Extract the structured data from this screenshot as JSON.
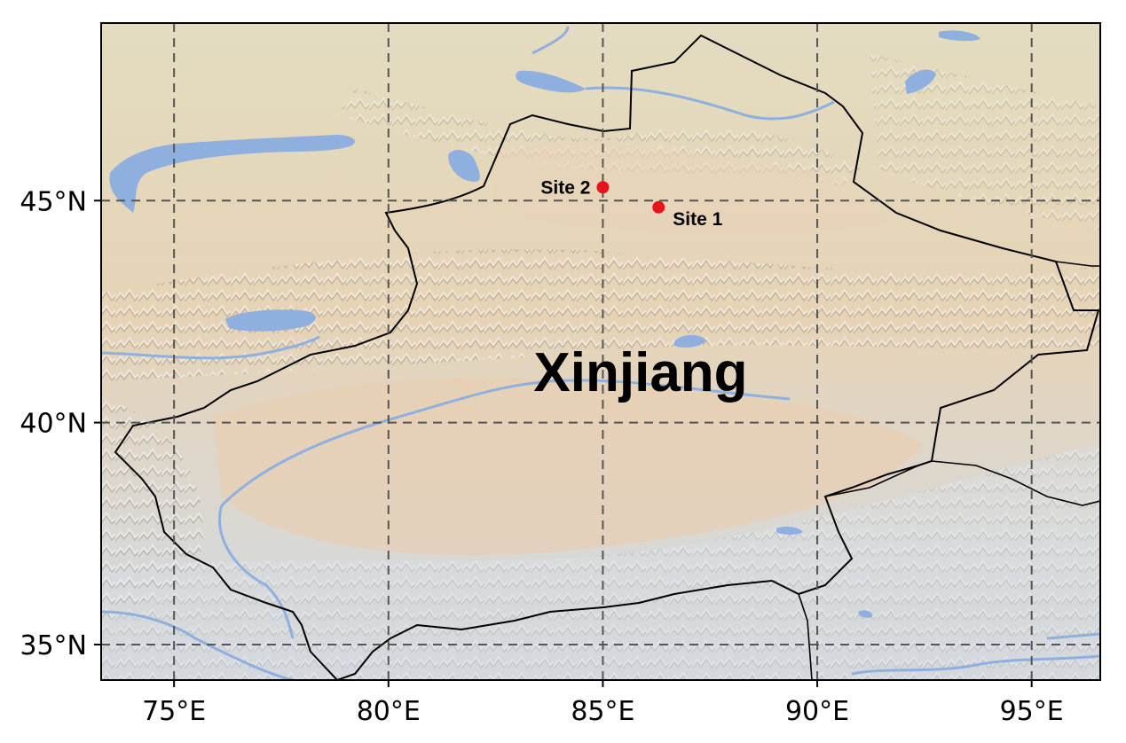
{
  "map": {
    "region_label": "Xinjiang",
    "lon_ticks": [
      {
        "value": 75,
        "label": "75°E"
      },
      {
        "value": 80,
        "label": "80°E"
      },
      {
        "value": 85,
        "label": "85°E"
      },
      {
        "value": 90,
        "label": "90°E"
      },
      {
        "value": 95,
        "label": "95°E"
      }
    ],
    "lat_ticks": [
      {
        "value": 45,
        "label": "45°N"
      },
      {
        "value": 40,
        "label": "40°N"
      },
      {
        "value": 35,
        "label": "35°N"
      }
    ],
    "sites": [
      {
        "name": "Site 1",
        "lon": 86.3,
        "lat": 44.85
      },
      {
        "name": "Site 2",
        "lon": 85.0,
        "lat": 45.3
      }
    ],
    "extent": {
      "lon_min": 73.3,
      "lon_max": 96.6,
      "lat_min": 34.2,
      "lat_max": 49.0
    },
    "colors": {
      "site_marker": "#e8141c",
      "water": "#8fb0df",
      "gridline": "#555555",
      "border": "#000000"
    },
    "gridlines": true
  }
}
